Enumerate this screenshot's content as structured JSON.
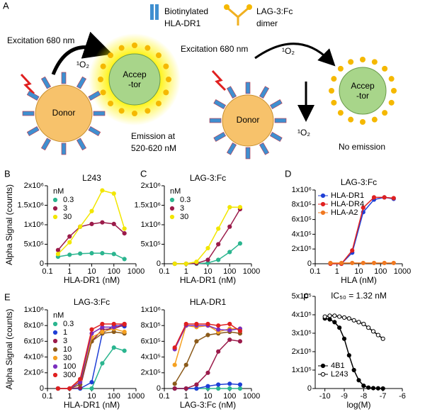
{
  "diagram": {
    "panel": "A",
    "legend": {
      "hla": [
        "Biotinylated",
        "HLA-DR1"
      ],
      "lag": [
        "LAG-3:Fc",
        "dimer"
      ]
    },
    "left": {
      "excitation": "Excitation 680 nm",
      "oxygen": "¹O₂",
      "acceptor": [
        "Accep",
        "-tor"
      ],
      "donor": "Donor",
      "emission": [
        "Emission at",
        "520-620 nM"
      ]
    },
    "right": {
      "excitation": "Excitation 680 nm",
      "oxygen": "¹O₂",
      "oxygen2": "¹O₂",
      "acceptor": [
        "Accep",
        "-tor"
      ],
      "donor": "Donor",
      "emission": "No emission"
    }
  },
  "chart_data": [
    {
      "type": "line",
      "panel": "B",
      "title": "L243",
      "x_label": "HLA-DR1 (nM)",
      "y_label": "Alpha Signal (counts)",
      "log_x": true,
      "xlim": [
        0.1,
        1000
      ],
      "xticks": [
        0.1,
        1,
        10,
        100,
        1000
      ],
      "ylim": [
        0,
        2000000
      ],
      "yticks": [
        0,
        {
          "value": 500000,
          "label": "5x10⁵"
        },
        {
          "value": 1000000,
          "label": "1x10⁶"
        },
        {
          "value": 1500000,
          "label": "1.5x10⁶"
        },
        {
          "value": 2000000,
          "label": "2x10⁶"
        }
      ],
      "legend_title": "nM",
      "legend": "upper left",
      "x": [
        0.3,
        1,
        3,
        10,
        30,
        100,
        300
      ],
      "series": [
        {
          "name": "0.3",
          "color": "#2bb58f",
          "values": [
            180000,
            230000,
            260000,
            270000,
            270000,
            250000,
            120000
          ]
        },
        {
          "name": "3",
          "color": "#9b1b4a",
          "values": [
            350000,
            700000,
            950000,
            1020000,
            1060000,
            1020000,
            780000
          ]
        },
        {
          "name": "30",
          "color": "#f2e600",
          "values": [
            250000,
            550000,
            950000,
            1350000,
            1880000,
            1800000,
            900000
          ]
        }
      ]
    },
    {
      "type": "line",
      "panel": "C",
      "title": "LAG-3:Fc",
      "x_label": "HLA-DR1 (nM)",
      "log_x": true,
      "xlim": [
        0.1,
        1000
      ],
      "xticks": [
        0.1,
        1,
        10,
        100,
        1000
      ],
      "ylim": [
        0,
        2000000
      ],
      "yticks": [
        0,
        {
          "value": 500000,
          "label": "5x10⁵"
        },
        {
          "value": 1000000,
          "label": "1x10⁶"
        },
        {
          "value": 1500000,
          "label": "1.5x10⁶"
        },
        {
          "value": 2000000,
          "label": "2x10⁶"
        }
      ],
      "legend_title": "nM",
      "legend": "upper left",
      "x": [
        0.3,
        1,
        3,
        10,
        30,
        100,
        300
      ],
      "series": [
        {
          "name": "0.3",
          "color": "#2bb58f",
          "values": [
            0,
            0,
            0,
            20000,
            100000,
            300000,
            520000
          ]
        },
        {
          "name": "3",
          "color": "#9b1b4a",
          "values": [
            0,
            0,
            10000,
            100000,
            500000,
            950000,
            1400000
          ]
        },
        {
          "name": "30",
          "color": "#f2e600",
          "values": [
            0,
            0,
            50000,
            400000,
            900000,
            1450000,
            1450000
          ]
        }
      ]
    },
    {
      "type": "line",
      "panel": "D",
      "title": "LAG-3:Fc",
      "x_label": "HLA (nM)",
      "log_x": true,
      "xlim": [
        0.1,
        1000
      ],
      "xticks": [
        0.1,
        1,
        10,
        100,
        1000
      ],
      "ylim": [
        0,
        1000000
      ],
      "yticks": [
        0,
        {
          "value": 200000,
          "label": "2x10⁵"
        },
        {
          "value": 400000,
          "label": "4x10⁵"
        },
        {
          "value": 600000,
          "label": "6x10⁵"
        },
        {
          "value": 800000,
          "label": "8x10⁵"
        },
        {
          "value": 1000000,
          "label": "1x10⁶"
        }
      ],
      "legend": "upper left line",
      "x": [
        0.5,
        1.6,
        5,
        16,
        50,
        150,
        400
      ],
      "series": [
        {
          "name": "HLA-DR1",
          "color": "#1f3fd6",
          "values": [
            0,
            0,
            150000,
            700000,
            870000,
            900000,
            880000
          ]
        },
        {
          "name": "HLA-DR4",
          "color": "#e02020",
          "values": [
            0,
            0,
            180000,
            760000,
            900000,
            900000,
            890000
          ]
        },
        {
          "name": "HLA-A2",
          "color": "#f07820",
          "values": [
            10000,
            10000,
            10000,
            10000,
            10000,
            10000,
            10000
          ]
        }
      ]
    },
    {
      "type": "line",
      "panel": "E",
      "title": "LAG-3:Fc",
      "x_label": "HLA-DR1 (nM)",
      "y_label": "Alpha Signal (counts)",
      "log_x": true,
      "xlim": [
        0.1,
        1000
      ],
      "xticks": [
        0.1,
        1,
        10,
        100,
        1000
      ],
      "ylim": [
        0,
        1000000
      ],
      "yticks": [
        0,
        {
          "value": 200000,
          "label": "2x10⁵"
        },
        {
          "value": 400000,
          "label": "4x10⁵"
        },
        {
          "value": 600000,
          "label": "6x10⁵"
        },
        {
          "value": 800000,
          "label": "8x10⁵"
        },
        {
          "value": 1000000,
          "label": "1x10⁶"
        }
      ],
      "legend_title": "nM",
      "legend": "upper left",
      "x": [
        0.3,
        1,
        3,
        10,
        30,
        100,
        300
      ],
      "series": [
        {
          "name": "0.3",
          "color": "#2bb58f",
          "values": [
            0,
            0,
            0,
            0,
            320000,
            520000,
            480000
          ]
        },
        {
          "name": "1",
          "color": "#1f3fd6",
          "values": [
            0,
            0,
            0,
            80000,
            700000,
            800000,
            790000
          ]
        },
        {
          "name": "3",
          "color": "#9b1b4a",
          "values": [
            0,
            0,
            10000,
            600000,
            750000,
            760000,
            810000
          ]
        },
        {
          "name": "10",
          "color": "#8b5a1a",
          "values": [
            0,
            0,
            50000,
            600000,
            700000,
            720000,
            700000
          ]
        },
        {
          "name": "30",
          "color": "#f5a020",
          "values": [
            0,
            0,
            100000,
            650000,
            720000,
            760000,
            720000
          ]
        },
        {
          "name": "100",
          "color": "#7b2fbe",
          "values": [
            0,
            0,
            80000,
            700000,
            780000,
            780000,
            820000
          ]
        },
        {
          "name": "300",
          "color": "#e02020",
          "values": [
            0,
            0,
            120000,
            750000,
            820000,
            820000,
            820000
          ]
        }
      ]
    },
    {
      "type": "line",
      "title": "HLA-DR1",
      "x_label": "LAG-3:Fc (nM)",
      "log_x": true,
      "xlim": [
        0.1,
        1000
      ],
      "xticks": [
        0.1,
        1,
        10,
        100,
        1000
      ],
      "ylim": [
        0,
        1000000
      ],
      "yticks": [
        0,
        {
          "value": 200000,
          "label": "2x10⁵"
        },
        {
          "value": 400000,
          "label": "4x10⁵"
        },
        {
          "value": 600000,
          "label": "6x10⁵"
        },
        {
          "value": 800000,
          "label": "8x10⁵"
        },
        {
          "value": 1000000,
          "label": "1x10⁶"
        }
      ],
      "x": [
        0.3,
        1,
        3,
        10,
        30,
        100,
        300
      ],
      "series": [
        {
          "color": "#2bb58f",
          "values": [
            0,
            0,
            0,
            0,
            0,
            0,
            0
          ]
        },
        {
          "color": "#1f3fd6",
          "values": [
            0,
            0,
            0,
            30000,
            50000,
            60000,
            50000
          ]
        },
        {
          "color": "#9b1b4a",
          "values": [
            0,
            0,
            50000,
            200000,
            470000,
            620000,
            600000
          ]
        },
        {
          "color": "#8b5a1a",
          "values": [
            60000,
            300000,
            600000,
            680000,
            700000,
            720000,
            700000
          ]
        },
        {
          "color": "#f5a020",
          "values": [
            300000,
            800000,
            780000,
            800000,
            720000,
            760000,
            760000
          ]
        },
        {
          "color": "#7b2fbe",
          "values": [
            500000,
            800000,
            800000,
            800000,
            750000,
            740000,
            760000
          ]
        },
        {
          "color": "#e02020",
          "values": [
            520000,
            820000,
            820000,
            820000,
            800000,
            820000,
            730000
          ]
        }
      ]
    },
    {
      "type": "line",
      "panel": "F",
      "x_label": "log(M)",
      "annotation": "IC₅₀ = 1.32 nM",
      "xlim": [
        -10.5,
        -6
      ],
      "xticks": [
        -10,
        -9,
        -8,
        -7,
        -6
      ],
      "ylim": [
        0,
        500000
      ],
      "yticks": [
        0,
        {
          "value": 100000,
          "label": "1x10⁵"
        },
        {
          "value": 200000,
          "label": "2x10⁵"
        },
        {
          "value": 300000,
          "label": "3x10⁵"
        },
        {
          "value": 400000,
          "label": "4x10⁵"
        },
        {
          "value": 500000,
          "label": "5x10⁵"
        }
      ],
      "legend": "lower left",
      "x": [
        -10,
        -9.75,
        -9.5,
        -9.25,
        -9,
        -8.75,
        -8.5,
        -8.25,
        -8,
        -7.75,
        -7.5,
        -7.25,
        -7
      ],
      "series": [
        {
          "name": "4B1",
          "color": "#000000",
          "values": [
            380000,
            375000,
            360000,
            330000,
            270000,
            180000,
            100000,
            45000,
            15000,
            5000,
            2000,
            1000,
            0
          ]
        },
        {
          "name": "L243",
          "color": "#000000",
          "open": true,
          "values": [
            390000,
            395000,
            395000,
            390000,
            385000,
            380000,
            370000,
            360000,
            350000,
            330000,
            310000,
            290000,
            270000
          ]
        }
      ]
    }
  ]
}
